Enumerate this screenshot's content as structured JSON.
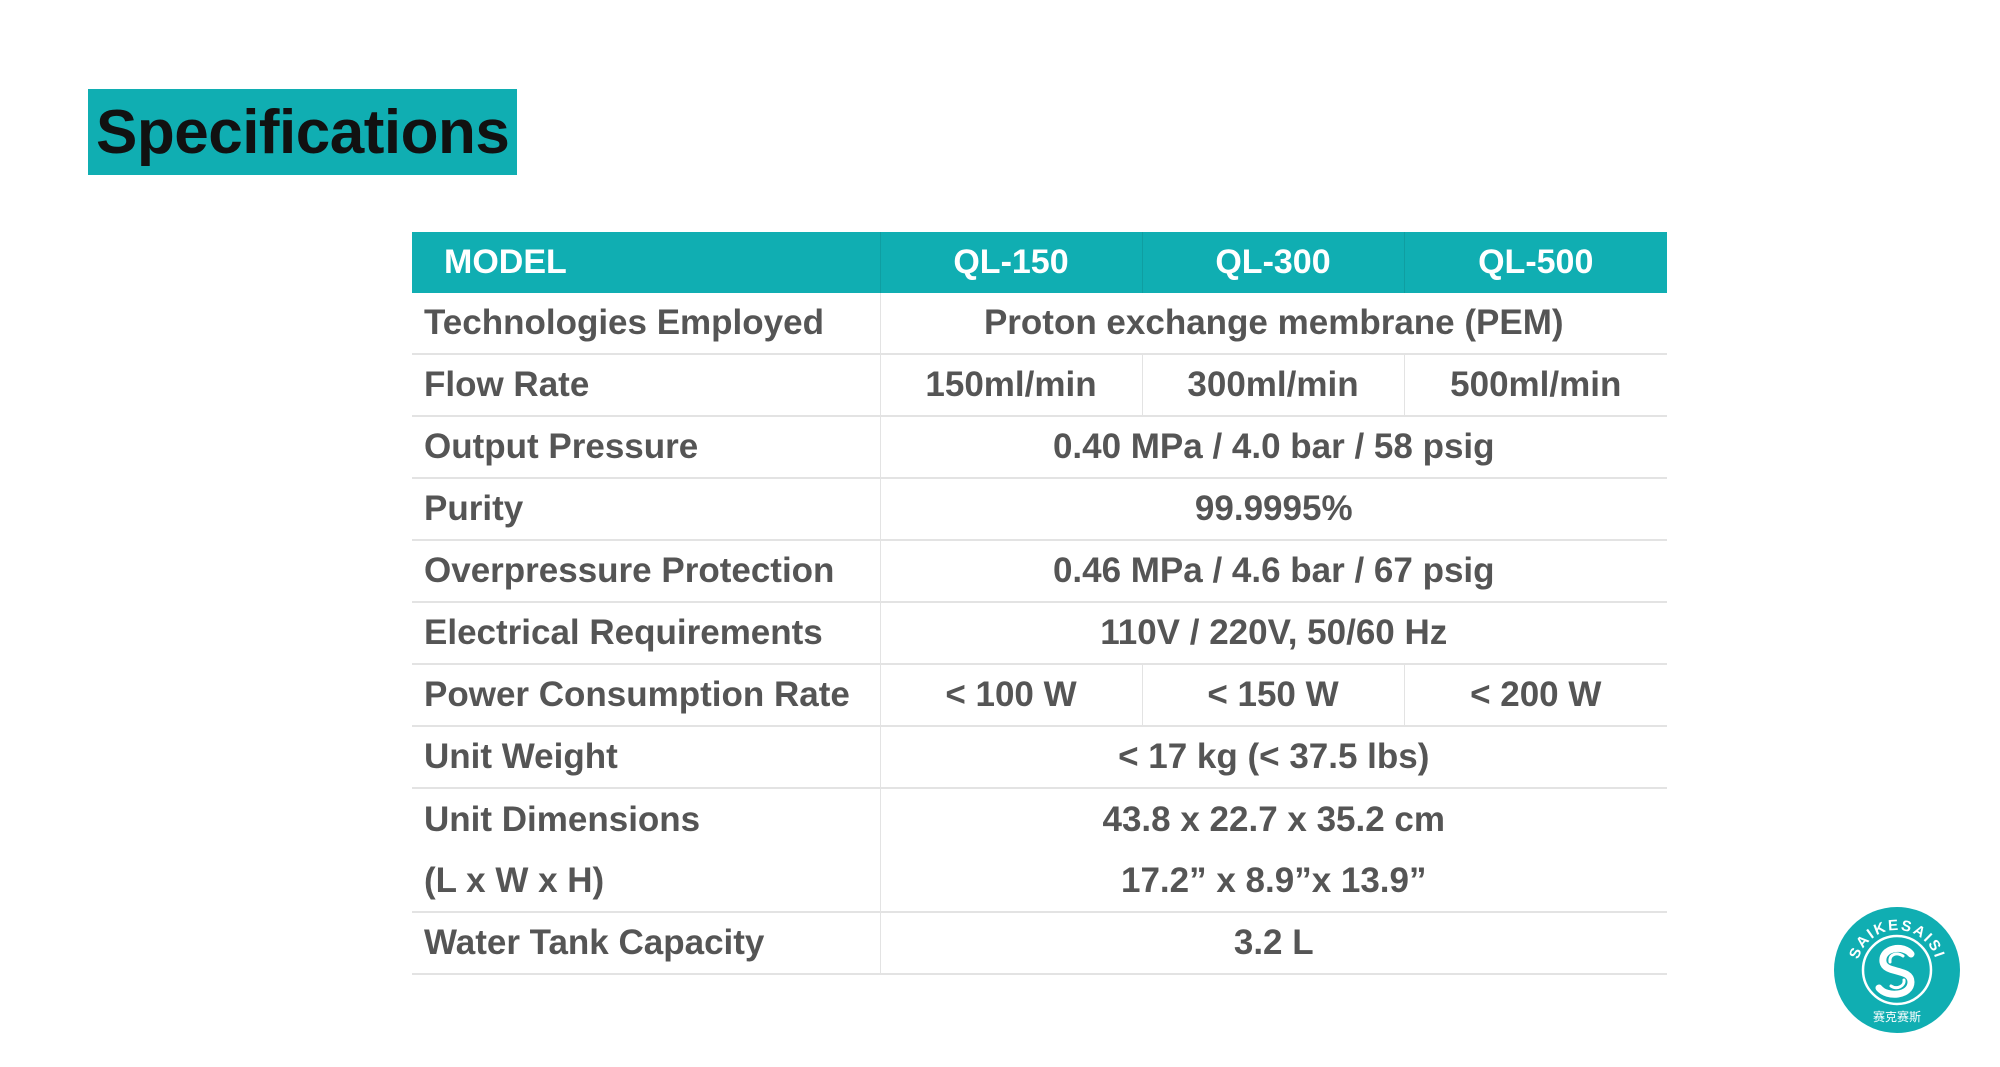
{
  "title": "Specifications",
  "table": {
    "header": {
      "label": "MODEL",
      "models": [
        "QL-150",
        "QL-300",
        "QL-500"
      ]
    },
    "rows": [
      {
        "label": "Technologies Employed",
        "value": "Proton exchange membrane (PEM)"
      },
      {
        "label": "Flow Rate",
        "values": [
          "150ml/min",
          "300ml/min",
          "500ml/min"
        ]
      },
      {
        "label": "Output Pressure",
        "value": "0.40 MPa / 4.0 bar / 58 psig"
      },
      {
        "label": "Purity",
        "value": "99.9995%"
      },
      {
        "label": "Overpressure Protection",
        "value": "0.46 MPa / 4.6 bar / 67 psig"
      },
      {
        "label": "Electrical Requirements",
        "value": "110V / 220V, 50/60 Hz"
      },
      {
        "label": "Power Consumption Rate",
        "values": [
          "< 100 W",
          "< 150 W",
          "< 200 W"
        ]
      },
      {
        "label": "Unit Weight",
        "value": "< 17 kg (< 37.5 lbs)"
      },
      {
        "label": "Unit Dimensions",
        "label2": "(L x W x H)",
        "value": "43.8 x 22.7 x 35.2 cm",
        "value2": "17.2” x 8.9”x 13.9”"
      },
      {
        "label": "Water Tank Capacity",
        "value": "3.2 L"
      }
    ]
  },
  "logo": {
    "text": "SAIKESAISI",
    "subtext": "赛克赛斯",
    "color": "#10aeb2"
  }
}
